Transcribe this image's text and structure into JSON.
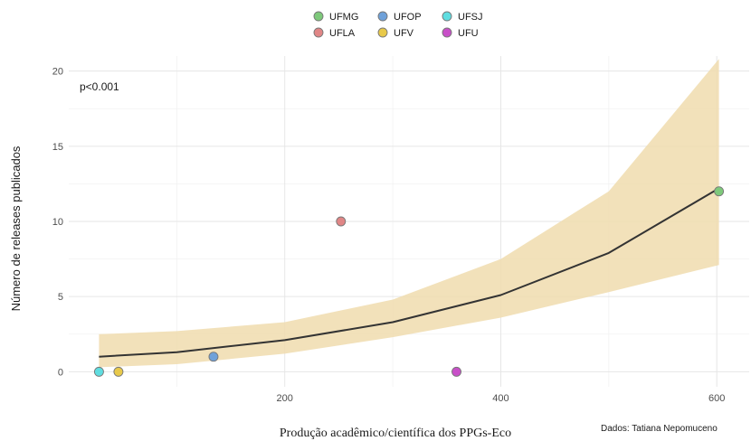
{
  "chart_data": {
    "type": "scatter",
    "title": "",
    "xlabel": "Produção acadêmico/científica dos PPGs-Eco",
    "ylabel": "Número de releases publicados",
    "xlim": [
      0,
      630
    ],
    "ylim": [
      -1,
      21
    ],
    "x_ticks": [
      200,
      400,
      600
    ],
    "y_ticks": [
      0,
      5,
      10,
      15,
      20
    ],
    "grid": true,
    "legend_position": "top",
    "annotation": "p<0.001",
    "caption": "Dados: Tatiana Nepomuceno",
    "series": [
      {
        "name": "UFMG",
        "color": "#7ec97b",
        "x": [
          602
        ],
        "y": [
          12
        ]
      },
      {
        "name": "UFOP",
        "color": "#6fa1d9",
        "x": [
          134
        ],
        "y": [
          1
        ]
      },
      {
        "name": "UFSJ",
        "color": "#5fdde0",
        "x": [
          28
        ],
        "y": [
          0
        ]
      },
      {
        "name": "UFLA",
        "color": "#e08686",
        "x": [
          252
        ],
        "y": [
          10
        ]
      },
      {
        "name": "UFV",
        "color": "#e8c94a",
        "x": [
          46
        ],
        "y": [
          0
        ]
      },
      {
        "name": "UFU",
        "color": "#c84fc8",
        "x": [
          359
        ],
        "y": [
          0
        ]
      }
    ],
    "fit": {
      "x": [
        28,
        100,
        200,
        300,
        400,
        500,
        602
      ],
      "y": [
        1.0,
        1.3,
        2.1,
        3.3,
        5.1,
        7.9,
        12.2
      ],
      "ci_lower": [
        0.3,
        0.5,
        1.2,
        2.3,
        3.6,
        5.3,
        7.1
      ],
      "ci_upper": [
        2.5,
        2.7,
        3.3,
        4.8,
        7.5,
        12.0,
        20.8
      ],
      "line_color": "#333333",
      "band_color": "#f0dcae"
    }
  }
}
